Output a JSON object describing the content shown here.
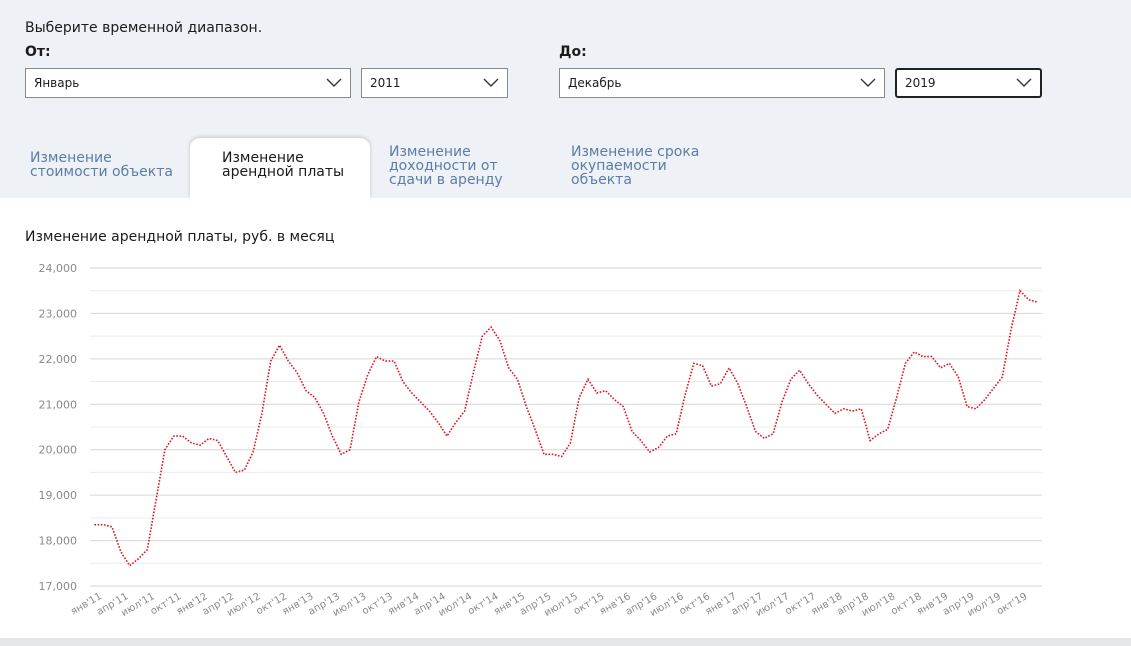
{
  "header": {
    "prompt": "Выберите временной диапазон.",
    "from_label": "От:",
    "to_label": "До:"
  },
  "selectors": {
    "from_month": "Январь",
    "from_year": "2011",
    "to_month": "Декабрь",
    "to_year": "2019"
  },
  "tabs": [
    {
      "line1": "Изменение",
      "line2": "стоимости объекта",
      "line3": ""
    },
    {
      "line1": "Изменение",
      "line2": "арендной платы",
      "line3": ""
    },
    {
      "line1": "Изменение",
      "line2": "доходности от",
      "line3": "сдачи в аренду"
    },
    {
      "line1": "Изменение срока",
      "line2": "окупаемости",
      "line3": "объекта"
    }
  ],
  "active_tab": 1,
  "colors": {
    "line": "#e0141e",
    "tab_inactive": "#5c7da8",
    "grid": "#dcdcdc"
  },
  "chart_data": {
    "type": "line",
    "title": "Изменение арендной платы, руб. в месяц",
    "ylim": [
      17000,
      24000
    ],
    "yticks": [
      "17,000",
      "18,000",
      "19,000",
      "20,000",
      "21,000",
      "22,000",
      "23,000",
      "24,000"
    ],
    "xtick_labels": [
      "янв'11",
      "апр'11",
      "июл'11",
      "окт'11",
      "янв'12",
      "апр'12",
      "июл'12",
      "окт'12",
      "янв'13",
      "апр'13",
      "июл'13",
      "окт'13",
      "янв'14",
      "апр'14",
      "июл'14",
      "окт'14",
      "янв'15",
      "апр'15",
      "июл'15",
      "окт'15",
      "янв'16",
      "апр'16",
      "июл'16",
      "окт'16",
      "янв'17",
      "апр'17",
      "июл'17",
      "окт'17",
      "янв'18",
      "апр'18",
      "июл'18",
      "окт'18",
      "янв'19",
      "апр'19",
      "июл'19",
      "окт'19"
    ],
    "line_style": "dotted",
    "series": [
      {
        "values": [
          18350,
          18350,
          18300,
          17750,
          17450,
          17600,
          17800,
          18900,
          20000,
          20300,
          20300,
          20150,
          20100,
          20250,
          20200,
          19850,
          19500,
          19550,
          19950,
          20800,
          21950,
          22300,
          21950,
          21700,
          21300,
          21150,
          20800,
          20300,
          19900,
          20000,
          21050,
          21650,
          22050,
          21950,
          21950,
          21500,
          21250,
          21050,
          20850,
          20600,
          20300,
          20600,
          20850,
          21700,
          22500,
          22700,
          22400,
          21800,
          21550,
          20950,
          20450,
          19900,
          19900,
          19850,
          20150,
          21150,
          21550,
          21250,
          21300,
          21100,
          20950,
          20400,
          20200,
          19950,
          20050,
          20300,
          20350,
          21200,
          21900,
          21850,
          21400,
          21450,
          21800,
          21450,
          20950,
          20400,
          20250,
          20350,
          21050,
          21550,
          21750,
          21450,
          21200,
          21000,
          20800,
          20900,
          20850,
          20900,
          20200,
          20350,
          20450,
          21150,
          21900,
          22150,
          22050,
          22050,
          21800,
          21900,
          21600,
          20950,
          20900,
          21100,
          21350,
          21600,
          22650,
          23500,
          23300,
          23250
        ]
      }
    ]
  }
}
